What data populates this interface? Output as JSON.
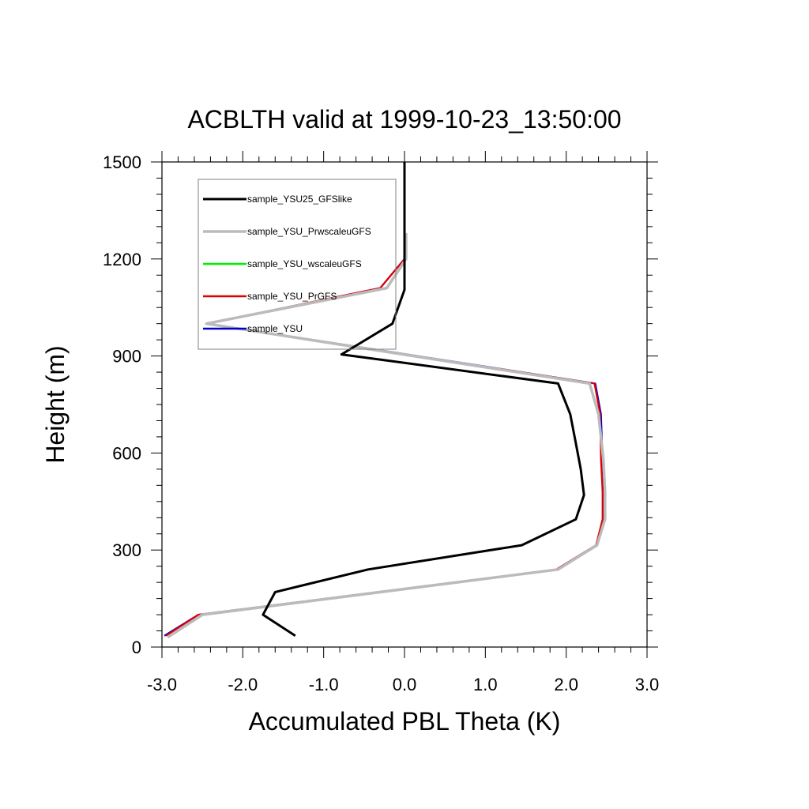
{
  "chart_data": {
    "type": "line",
    "title": "ACBLTH valid at 1999-10-23_13:50:00",
    "xlabel": "Accumulated PBL Theta (K)",
    "ylabel": "Height (m)",
    "xlim": [
      -3.0,
      3.0
    ],
    "ylim": [
      0,
      1500
    ],
    "xticks": [
      -3.0,
      -2.0,
      -1.0,
      0.0,
      1.0,
      2.0,
      3.0
    ],
    "xtick_labels": [
      "-3.0",
      "-2.0",
      "-1.0",
      "0.0",
      "1.0",
      "2.0",
      "3.0"
    ],
    "yticks": [
      0,
      300,
      600,
      900,
      1200,
      1500
    ],
    "ytick_labels": [
      "0",
      "300",
      "600",
      "900",
      "1200",
      "1500"
    ],
    "grid": false,
    "legend_position": "top-left",
    "series": [
      {
        "name": "sample_YSU",
        "color": "#0000cc",
        "x": [
          -2.97,
          -2.55,
          1.88,
          2.37,
          2.47,
          2.47,
          2.45,
          2.43,
          2.36,
          -2.43,
          -0.3,
          0.0,
          0.0
        ],
        "y": [
          35,
          100,
          240,
          315,
          395,
          480,
          580,
          720,
          815,
          1000,
          1110,
          1200,
          1280
        ]
      },
      {
        "name": "sample_YSU_PrGFS",
        "color": "#dd0000",
        "x": [
          -2.95,
          -2.55,
          1.88,
          2.37,
          2.45,
          2.45,
          2.43,
          2.42,
          2.35,
          -2.45,
          -0.3,
          0.0,
          0.0
        ],
        "y": [
          35,
          100,
          240,
          315,
          395,
          480,
          580,
          720,
          815,
          1000,
          1110,
          1200,
          1280
        ]
      },
      {
        "name": "sample_YSU_wscaleuGFS",
        "color": "#00ee00",
        "x": [
          -2.93,
          -2.5,
          1.9,
          2.38,
          2.48,
          2.48,
          2.46,
          2.4,
          2.29,
          -2.45,
          -0.22,
          0.02,
          0.02
        ],
        "y": [
          30,
          100,
          240,
          315,
          395,
          480,
          580,
          720,
          815,
          1000,
          1110,
          1200,
          1280
        ]
      },
      {
        "name": "sample_YSU_PrwscaleuGFS",
        "color": "#bbbbbb",
        "x": [
          -2.93,
          -2.5,
          1.9,
          2.38,
          2.48,
          2.48,
          2.46,
          2.4,
          2.29,
          -2.45,
          -0.22,
          0.02,
          0.02
        ],
        "y": [
          30,
          100,
          240,
          315,
          395,
          480,
          580,
          720,
          815,
          1000,
          1110,
          1200,
          1280
        ]
      },
      {
        "name": "sample_YSU25_GFSlike",
        "color": "#000000",
        "x": [
          -1.35,
          -1.75,
          -1.6,
          -0.45,
          1.45,
          2.12,
          2.22,
          2.18,
          2.12,
          2.05,
          1.9,
          -0.78,
          -0.15,
          0.0,
          0.0,
          0.0
        ],
        "y": [
          35,
          100,
          170,
          240,
          315,
          395,
          470,
          550,
          630,
          720,
          815,
          905,
          1000,
          1105,
          1200,
          1500
        ]
      }
    ],
    "legend_order": [
      "sample_YSU25_GFSlike",
      "sample_YSU_PrwscaleuGFS",
      "sample_YSU_wscaleuGFS",
      "sample_YSU_PrGFS",
      "sample_YSU"
    ]
  }
}
